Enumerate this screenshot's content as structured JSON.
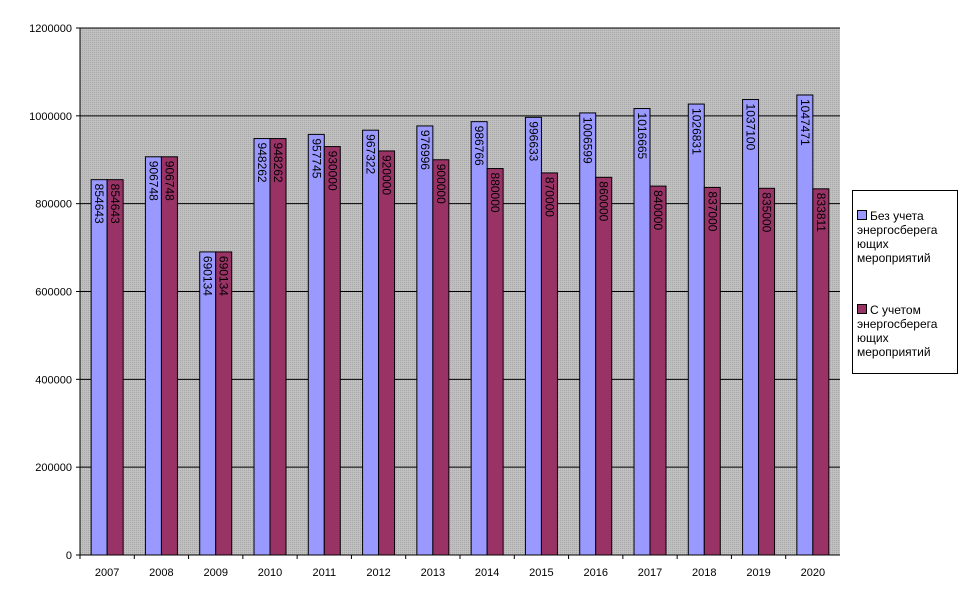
{
  "chart_data": {
    "type": "bar",
    "title": "",
    "xlabel": "",
    "ylabel": "",
    "ylim": [
      0,
      1200000
    ],
    "yticks": [
      0,
      200000,
      400000,
      600000,
      800000,
      1000000,
      1200000
    ],
    "grid": true,
    "legend_placement": "right",
    "categories": [
      "2007",
      "2008",
      "2009",
      "2010",
      "2011",
      "2012",
      "2013",
      "2014",
      "2015",
      "2016",
      "2017",
      "2018",
      "2019",
      "2020"
    ],
    "series": [
      {
        "name": "Без учета энергосберегающих мероприятий",
        "color": "#9999FF",
        "values": [
          854643,
          906748,
          690134,
          948262,
          957745,
          967322,
          976996,
          986766,
          996633,
          1006599,
          1016665,
          1026831,
          1037100,
          1047471
        ]
      },
      {
        "name": "С учетом энергосберегающих мероприятий",
        "color": "#993366",
        "values": [
          854643,
          906748,
          690134,
          948262,
          930000,
          920000,
          900000,
          880000,
          870000,
          860000,
          840000,
          837000,
          835000,
          833811
        ]
      }
    ],
    "plot_background": "#C0C0C0"
  },
  "legend": {
    "items": [
      {
        "label": "Без учета энергосберега ющих мероприятий"
      },
      {
        "label": "С учетом энергосберега ющих мероприятий"
      }
    ]
  }
}
